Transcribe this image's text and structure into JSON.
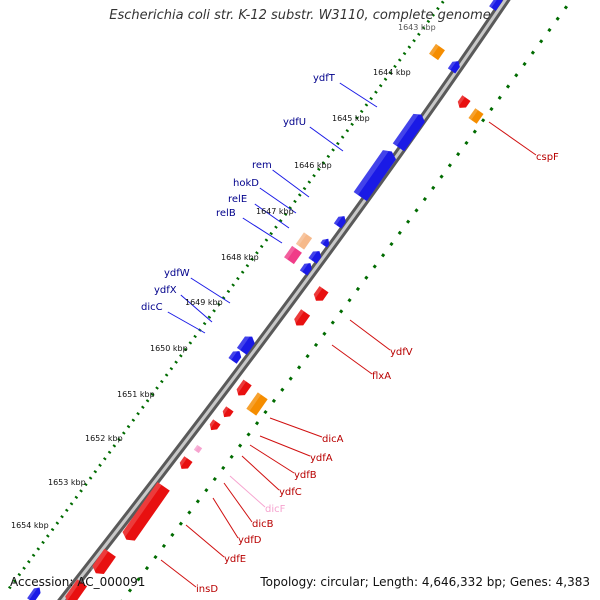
{
  "title": "Escherichia coli str. K-12 substr. W3110, complete genome",
  "footer": {
    "accession": "Accession: AC_000091",
    "topology": "Topology: circular; Length: 4,646,332 bp; Genes: 4,383"
  },
  "ruler": {
    "partial_top_label": "1643 kbp",
    "labels": [
      "1644 kbp",
      "1645 kbp",
      "1646 kbp",
      "1647 kbp",
      "1648 kbp",
      "1649 kbp",
      "1650 kbp",
      "1651 kbp",
      "1652 kbp",
      "1653 kbp",
      "1654 kbp"
    ]
  },
  "colors": {
    "forward_gene": "#1a1ae6",
    "reverse_gene": "#e81010",
    "orange_feature": "#f58d00",
    "pink_feature": "#f03c88",
    "light_pink_feature": "#f6a3cf",
    "forward_label": "#00008b",
    "reverse_label": "#b80000",
    "tick_green": "#006b00",
    "backbone": "#7f7f7f"
  },
  "forward_labels": [
    "ydfT",
    "ydfU",
    "rem",
    "hokD",
    "relE",
    "relB",
    "ydfW",
    "ydfX",
    "dicC"
  ],
  "reverse_labels": [
    "cspF",
    "ydfV",
    "flxA",
    "dicA",
    "ydfA",
    "ydfB",
    "ydfC",
    "dicF",
    "dicB",
    "ydfD",
    "ydfE",
    "insD"
  ]
}
